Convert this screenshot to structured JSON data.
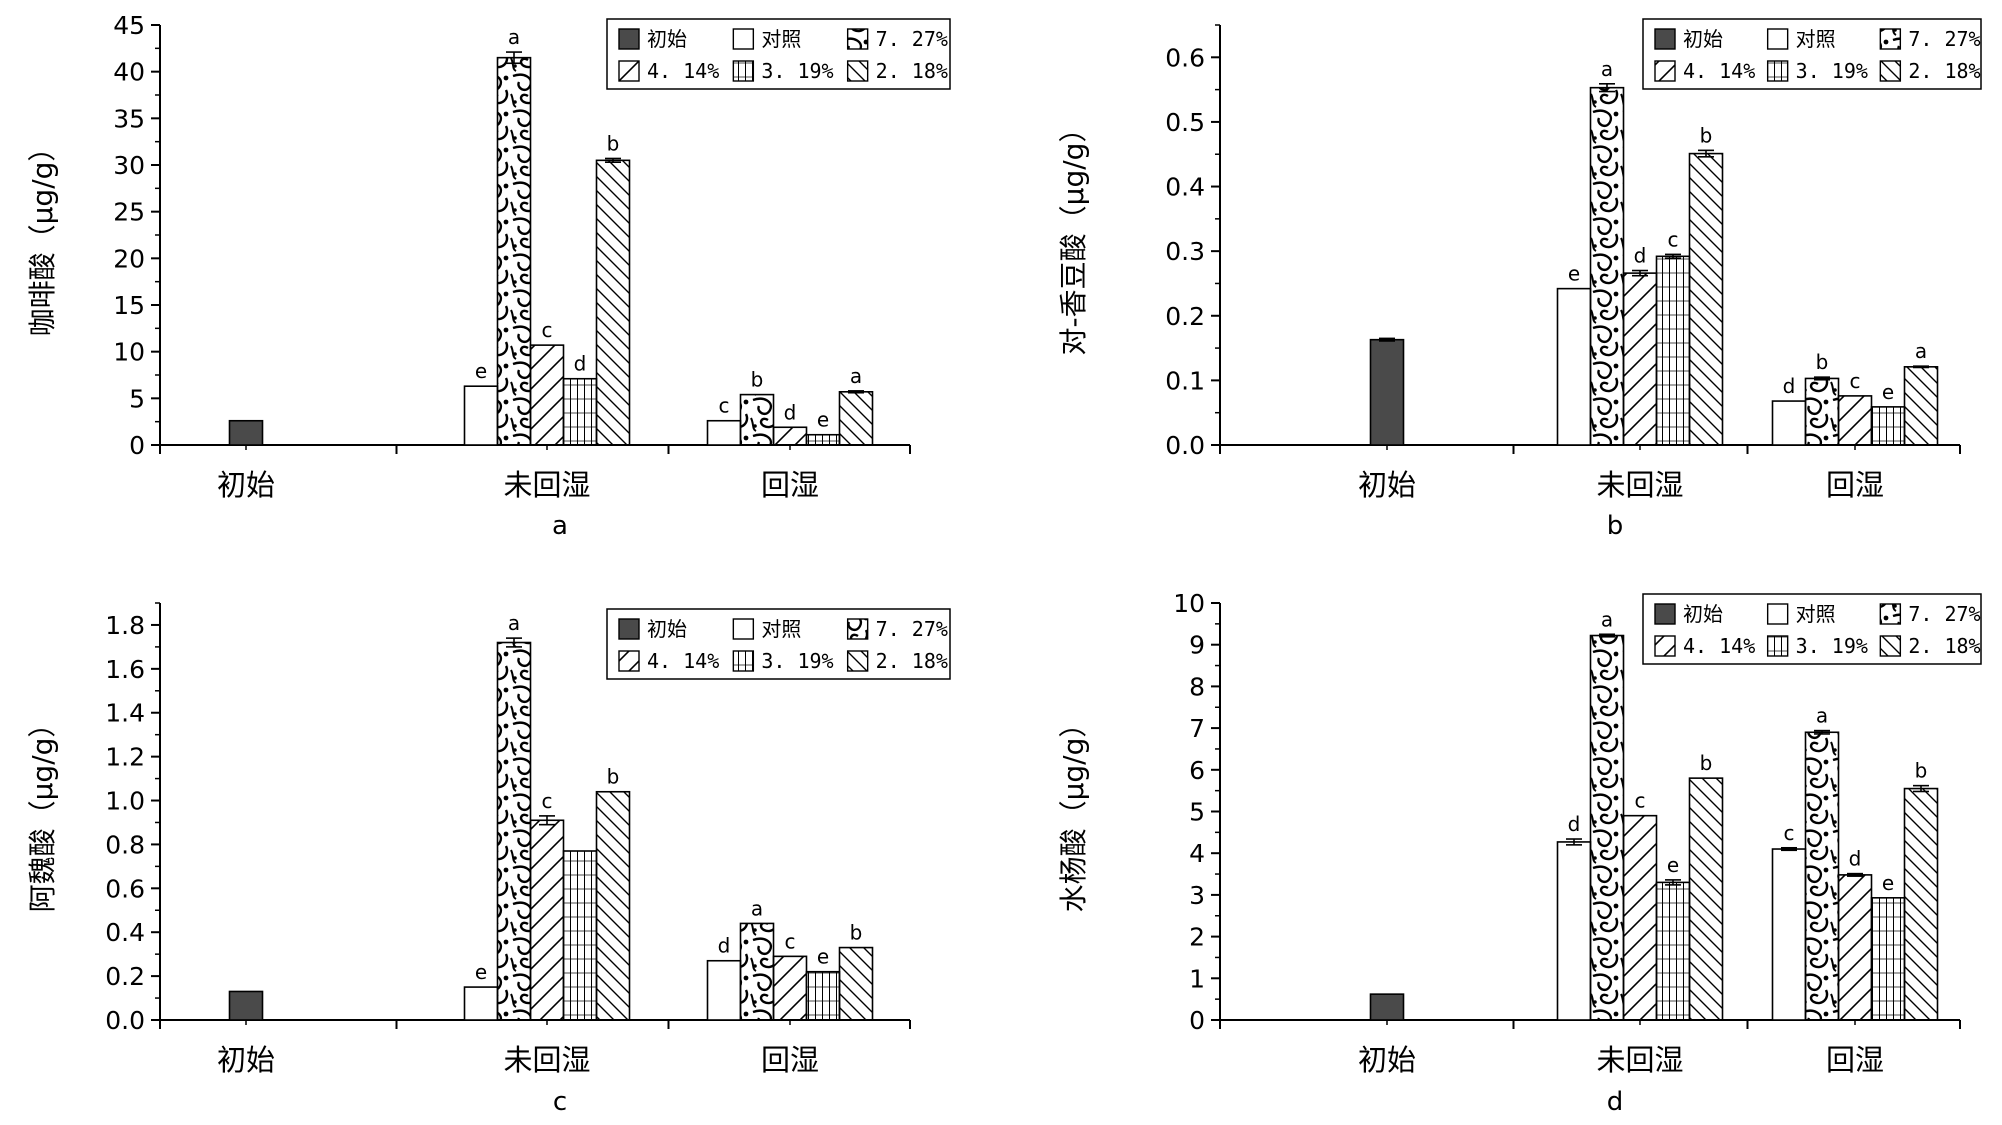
{
  "legend_entries": [
    {
      "name": "初始",
      "pattern": "solid"
    },
    {
      "name": "对照",
      "pattern": "white"
    },
    {
      "name": "7. 27%",
      "pattern": "cells"
    },
    {
      "name": "4. 14%",
      "pattern": "diag-coarse"
    },
    {
      "name": "3. 19%",
      "pattern": "grid"
    },
    {
      "name": "2. 18%",
      "pattern": "diag-fine"
    }
  ],
  "colors": {
    "initial_fill": "#4a4a4a",
    "stroke": "#000000",
    "background": "#ffffff"
  },
  "chart_data": [
    {
      "type": "bar",
      "panel_label": "a",
      "ylabel": "咖啡酸（μg/g）",
      "ylim": [
        0,
        45
      ],
      "yticks": [
        0,
        5,
        10,
        15,
        20,
        25,
        30,
        35,
        40,
        45
      ],
      "ytick_decimals": 0,
      "legend_position": "top-right",
      "categories": [
        "初始",
        "未回湿",
        "回湿"
      ],
      "initial": {
        "value": 2.6,
        "error": 0
      },
      "series": [
        {
          "values": [
            null,
            6.3,
            2.6
          ],
          "errors": [
            null,
            0,
            0
          ],
          "labels": [
            null,
            "e",
            "c"
          ]
        },
        {
          "values": [
            null,
            41.5,
            5.4
          ],
          "errors": [
            null,
            0.6,
            0
          ],
          "labels": [
            null,
            "a",
            "b"
          ]
        },
        {
          "values": [
            null,
            10.7,
            1.9
          ],
          "errors": [
            null,
            0,
            0
          ],
          "labels": [
            null,
            "c",
            "d"
          ]
        },
        {
          "values": [
            null,
            7.1,
            1.1
          ],
          "errors": [
            null,
            0,
            0
          ],
          "labels": [
            null,
            "d",
            "e"
          ]
        },
        {
          "values": [
            null,
            30.5,
            5.7
          ],
          "errors": [
            null,
            0.2,
            0.1
          ],
          "labels": [
            null,
            "b",
            "a"
          ]
        }
      ]
    },
    {
      "type": "bar",
      "panel_label": "b",
      "ylabel": "对-香豆酸（μg/g）",
      "ylim": [
        0,
        0.65
      ],
      "yticks": [
        0,
        0.1,
        0.2,
        0.3,
        0.4,
        0.5,
        0.6
      ],
      "ytick_decimals": 1,
      "legend_position": "top-right",
      "categories": [
        "初始",
        "未回湿",
        "回湿"
      ],
      "initial": {
        "value": 0.163,
        "error": 0.002
      },
      "series": [
        {
          "values": [
            null,
            0.242,
            0.068
          ],
          "errors": [
            null,
            0,
            0
          ],
          "labels": [
            null,
            "e",
            "d"
          ]
        },
        {
          "values": [
            null,
            0.553,
            0.103
          ],
          "errors": [
            null,
            0.006,
            0.002
          ],
          "labels": [
            null,
            "a",
            "b"
          ]
        },
        {
          "values": [
            null,
            0.266,
            0.076
          ],
          "errors": [
            null,
            0.004,
            0
          ],
          "labels": [
            null,
            "d",
            "c"
          ]
        },
        {
          "values": [
            null,
            0.292,
            0.059
          ],
          "errors": [
            null,
            0.003,
            0
          ],
          "labels": [
            null,
            "c",
            "e"
          ]
        },
        {
          "values": [
            null,
            0.451,
            0.121
          ],
          "errors": [
            null,
            0.005,
            0.001
          ],
          "labels": [
            null,
            "b",
            "a"
          ]
        }
      ]
    },
    {
      "type": "bar",
      "panel_label": "c",
      "ylabel": "阿魏酸（μg/g）",
      "ylim": [
        0,
        1.9
      ],
      "yticks": [
        0,
        0.2,
        0.4,
        0.6,
        0.8,
        1.0,
        1.2,
        1.4,
        1.6,
        1.8
      ],
      "ytick_decimals": 1,
      "legend_position": "top-right",
      "categories": [
        "初始",
        "未回湿",
        "回湿"
      ],
      "initial": {
        "value": 0.13,
        "error": 0
      },
      "series": [
        {
          "values": [
            null,
            0.15,
            0.27
          ],
          "errors": [
            null,
            0,
            0
          ],
          "labels": [
            null,
            "e",
            "d"
          ]
        },
        {
          "values": [
            null,
            1.72,
            0.44
          ],
          "errors": [
            null,
            0.02,
            0
          ],
          "labels": [
            null,
            "a",
            "a"
          ]
        },
        {
          "values": [
            null,
            0.91,
            0.29
          ],
          "errors": [
            null,
            0.02,
            0
          ],
          "labels": [
            null,
            "c",
            "c"
          ]
        },
        {
          "values": [
            null,
            0.77,
            0.22
          ],
          "errors": [
            null,
            0,
            0
          ],
          "labels": [
            null,
            "",
            "e"
          ]
        },
        {
          "values": [
            null,
            1.04,
            0.33
          ],
          "errors": [
            null,
            0,
            0
          ],
          "labels": [
            null,
            "b",
            "b"
          ]
        }
      ]
    },
    {
      "type": "bar",
      "panel_label": "d",
      "ylabel": "水杨酸（μg/g）",
      "ylim": [
        0,
        10
      ],
      "yticks": [
        0,
        1,
        2,
        3,
        4,
        5,
        6,
        7,
        8,
        9,
        10
      ],
      "ytick_decimals": 0,
      "legend_position": "top-right",
      "categories": [
        "初始",
        "未回湿",
        "回湿"
      ],
      "initial": {
        "value": 0.62,
        "error": 0
      },
      "series": [
        {
          "values": [
            null,
            4.27,
            4.1
          ],
          "errors": [
            null,
            0.07,
            0.03
          ],
          "labels": [
            null,
            "d",
            "c"
          ]
        },
        {
          "values": [
            null,
            9.22,
            6.9
          ],
          "errors": [
            null,
            0.03,
            0.04
          ],
          "labels": [
            null,
            "a",
            "a"
          ]
        },
        {
          "values": [
            null,
            4.9,
            3.48
          ],
          "errors": [
            null,
            0,
            0.03
          ],
          "labels": [
            null,
            "c",
            "d"
          ]
        },
        {
          "values": [
            null,
            3.3,
            2.93
          ],
          "errors": [
            null,
            0.06,
            0
          ],
          "labels": [
            null,
            "e",
            "e"
          ]
        },
        {
          "values": [
            null,
            5.8,
            5.55
          ],
          "errors": [
            null,
            0,
            0.07
          ],
          "labels": [
            null,
            "b",
            "b"
          ]
        }
      ]
    }
  ]
}
